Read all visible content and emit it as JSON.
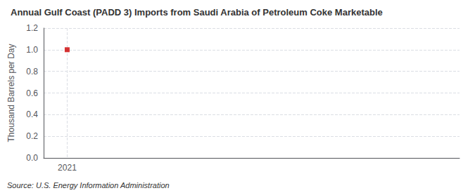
{
  "chart_data": {
    "type": "scatter",
    "title": "Annual Gulf Coast (PADD 3) Imports from Saudi Arabia of Petroleum Coke Marketable",
    "ylabel": "Thousand Barrels per Day",
    "annotations": [
      "Source: U.S. Energy Information Administration"
    ],
    "x": [
      2021
    ],
    "values": [
      1.0
    ],
    "color": "#cc0000",
    "marker": "square",
    "xlim": [
      2020.7,
      2026.0
    ],
    "ylim": [
      0.0,
      1.2
    ],
    "xticks": [
      2021
    ],
    "yticks": [
      {
        "value": 0.0,
        "label": "0.0"
      },
      {
        "value": 0.2,
        "label": "0.2"
      },
      {
        "value": 0.4,
        "label": "0.4"
      },
      {
        "value": 0.6,
        "label": "0.6"
      },
      {
        "value": 0.8,
        "label": "0.8"
      },
      {
        "value": 1.0,
        "label": "1.0"
      },
      {
        "value": 1.2,
        "label": "1.2"
      }
    ],
    "grid": true
  }
}
